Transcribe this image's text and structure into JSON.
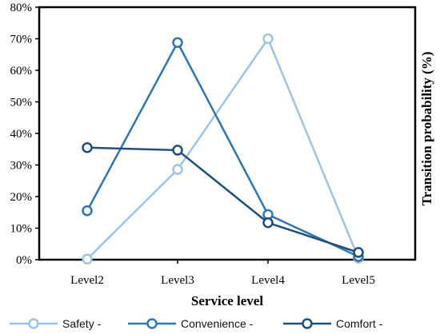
{
  "chart_data": {
    "type": "line",
    "categories": [
      "Level2",
      "Level3",
      "Level4",
      "Level5"
    ],
    "xlabel": "Service level",
    "ylabel": "Transition probability (%)",
    "ylim": [
      0,
      80
    ],
    "yticks": [
      0,
      10,
      20,
      30,
      40,
      50,
      60,
      70,
      80
    ],
    "ytick_labels": [
      "0%",
      "10%",
      "20%",
      "30%",
      "40%",
      "50%",
      "60%",
      "70%",
      "80%"
    ],
    "grid": false,
    "legend_position": "bottom",
    "series": [
      {
        "name": "Safety -",
        "values": [
          0.2,
          28.6,
          70.0,
          0.5
        ],
        "color": "#9dc3e6"
      },
      {
        "name": "Convenience -",
        "values": [
          15.5,
          68.8,
          14.3,
          1.0
        ],
        "color": "#2e75b6"
      },
      {
        "name": "Comfort -",
        "values": [
          35.5,
          34.7,
          11.7,
          2.3
        ],
        "color": "#1f4e79"
      }
    ]
  }
}
